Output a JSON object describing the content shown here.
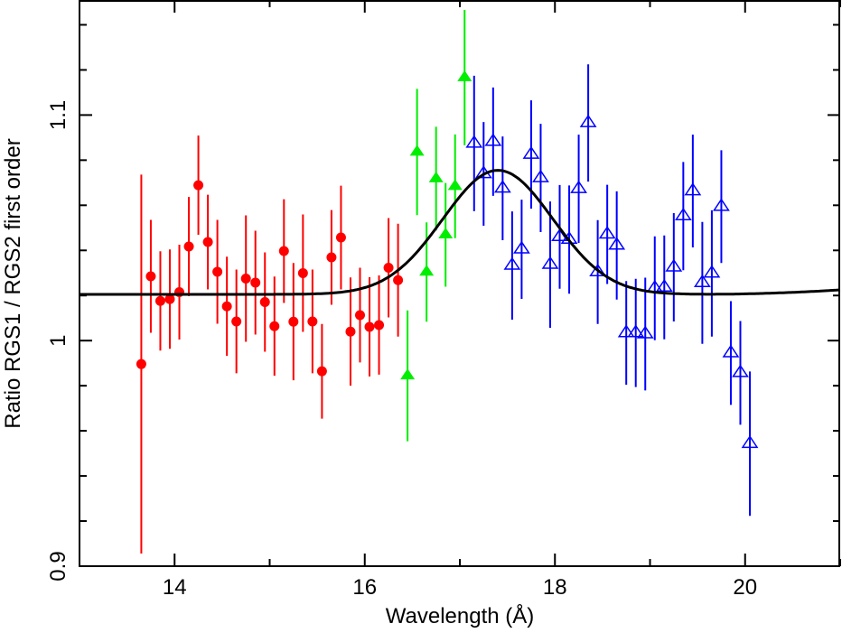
{
  "chart_data": {
    "type": "scatter",
    "title": "",
    "xlabel": "Wavelength (Å)",
    "ylabel": "Ratio RGS1 / RGS2 first order",
    "xlim": [
      13,
      21
    ],
    "ylim": [
      0.9,
      1.151
    ],
    "x_ticks": [
      14,
      16,
      18,
      20
    ],
    "x_minor_ticks": [
      13,
      15,
      17,
      19,
      21
    ],
    "y_ticks": [
      0.9,
      1,
      1.1
    ],
    "y_tick_labels": [
      "0.9",
      "1",
      "1.1"
    ],
    "y_minor_step": 0.02,
    "grid": false,
    "series": [
      {
        "color": "#ff0000",
        "marker": "filled-circle",
        "x": [
          13.65,
          13.75,
          13.85,
          13.95,
          14.05,
          14.15,
          14.25,
          14.35,
          14.45,
          14.55,
          14.65,
          14.75,
          14.85,
          14.95,
          15.05,
          15.15,
          15.25,
          15.35,
          15.45,
          15.55,
          15.65,
          15.75,
          15.85,
          15.95,
          16.05,
          16.15,
          16.25,
          16.35
        ],
        "y": [
          0.9896,
          1.0285,
          1.0176,
          1.0184,
          1.0215,
          1.0417,
          1.0689,
          1.0437,
          1.0305,
          1.0152,
          1.0085,
          1.0275,
          1.0257,
          1.0171,
          1.0064,
          1.0397,
          1.0084,
          1.0299,
          1.0085,
          0.9864,
          1.0369,
          1.0457,
          1.004,
          1.0113,
          1.0061,
          1.0069,
          1.0323,
          1.0268
        ],
        "yerr": [
          0.084,
          0.025,
          0.022,
          0.022,
          0.021,
          0.022,
          0.022,
          0.021,
          0.023,
          0.022,
          0.023,
          0.028,
          0.023,
          0.022,
          0.022,
          0.023,
          0.026,
          0.026,
          0.023,
          0.021,
          0.021,
          0.023,
          0.024,
          0.021,
          0.022,
          0.022,
          0.022,
          0.025
        ]
      },
      {
        "color": "#00ee00",
        "marker": "filled-triangle",
        "x": [
          16.45,
          16.55,
          16.65,
          16.75,
          16.85,
          16.95,
          17.05
        ],
        "y": [
          0.9844,
          1.0836,
          1.0304,
          1.0718,
          1.0469,
          1.0684,
          1.1166
        ],
        "yerr": [
          0.029,
          0.028,
          0.022,
          0.023,
          0.023,
          0.023,
          0.03
        ]
      },
      {
        "color": "#0000ff",
        "marker": "open-triangle",
        "x": [
          17.15,
          17.25,
          17.35,
          17.45,
          17.55,
          17.65,
          17.75,
          17.85,
          17.95,
          18.05,
          18.15,
          18.25,
          18.35,
          18.45,
          18.55,
          18.65,
          18.75,
          18.85,
          18.95,
          19.05,
          19.15,
          19.25,
          19.35,
          19.45,
          19.55,
          19.65,
          19.75,
          19.85,
          19.95,
          20.05
        ],
        "y": [
          1.0874,
          1.0739,
          1.0882,
          1.0675,
          1.0333,
          1.0405,
          1.0825,
          1.0721,
          1.0337,
          1.046,
          1.0448,
          1.0673,
          1.0965,
          1.0304,
          1.0471,
          1.0422,
          1.0034,
          1.0034,
          1.0029,
          1.0232,
          1.0236,
          1.0325,
          1.0552,
          1.0663,
          1.0256,
          1.0298,
          1.0594,
          0.9945,
          0.9857,
          0.9543
        ],
        "yerr": [
          0.03,
          0.023,
          0.024,
          0.023,
          0.024,
          0.022,
          0.024,
          0.024,
          0.028,
          0.023,
          0.024,
          0.024,
          0.026,
          0.023,
          0.022,
          0.024,
          0.023,
          0.024,
          0.025,
          0.023,
          0.023,
          0.024,
          0.024,
          0.025,
          0.027,
          0.028,
          0.025,
          0.023,
          0.023,
          0.032
        ]
      }
    ],
    "model": {
      "shape": "gaussian",
      "color": "#000000",
      "continuum": 1.0205,
      "amplitude": 0.055,
      "center": 17.4,
      "sigma": 0.58
    }
  }
}
